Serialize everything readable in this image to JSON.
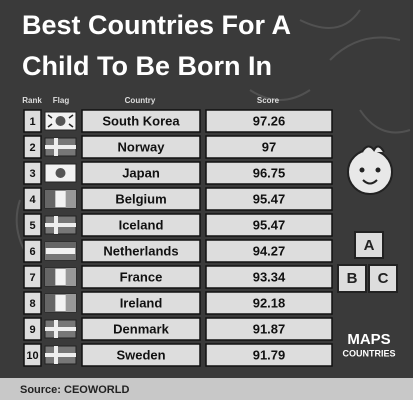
{
  "header": {
    "title_lines": [
      "Best Countries For A",
      "Child To Be Born In"
    ]
  },
  "table": {
    "columns": [
      "Rank",
      "Flag",
      "Country",
      "Score"
    ],
    "rows": [
      {
        "rank": 1,
        "country": "South Korea",
        "score": 97.26
      },
      {
        "rank": 2,
        "country": "Norway",
        "score": 97
      },
      {
        "rank": 3,
        "country": "Japan",
        "score": 96.75
      },
      {
        "rank": 4,
        "country": "Belgium",
        "score": 95.47
      },
      {
        "rank": 5,
        "country": "Iceland",
        "score": 95.47
      },
      {
        "rank": 6,
        "country": "Netherlands",
        "score": 94.27
      },
      {
        "rank": 7,
        "country": "France",
        "score": 93.34
      },
      {
        "rank": 8,
        "country": "Ireland",
        "score": 92.18
      },
      {
        "rank": 9,
        "country": "Denmark",
        "score": 91.87
      },
      {
        "rank": 10,
        "country": "Sweden",
        "score": 91.79
      }
    ]
  },
  "blocks": [
    "A",
    "B",
    "C"
  ],
  "logo": [
    "MAPS",
    "COUNTRIES"
  ],
  "source": "Source: CEOWORLD"
}
